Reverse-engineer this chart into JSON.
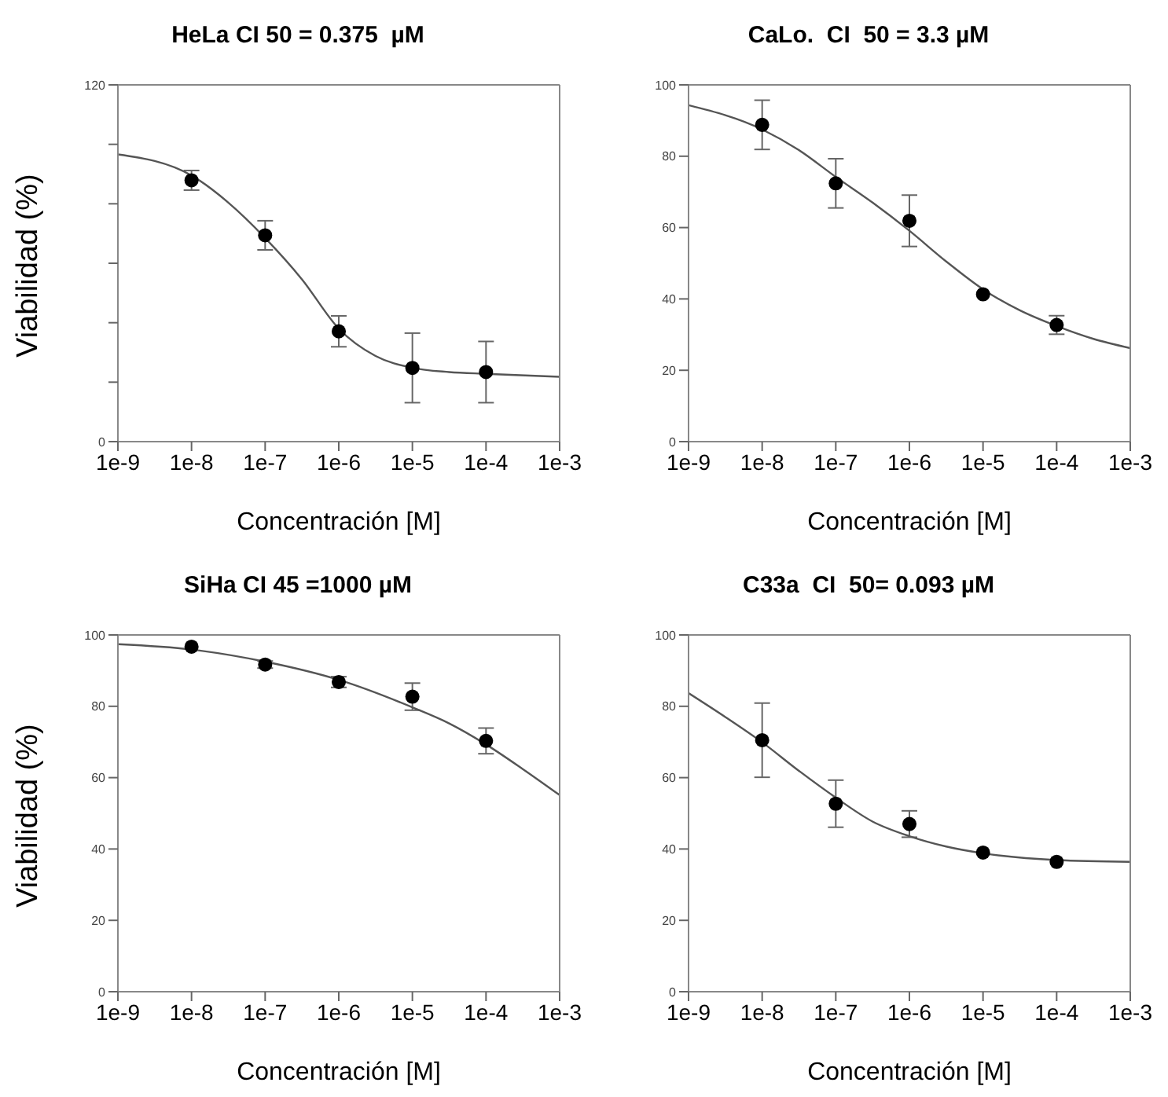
{
  "chart_data": [
    {
      "type": "scatter",
      "title": "HeLa CI 50 = 0.375  µM",
      "xlabel": "Concentración [M]",
      "ylabel": "Viabilidad (%)",
      "log": "x",
      "xlim": [
        1e-09,
        0.001
      ],
      "xticks": [
        {
          "value": 1e-09,
          "label": "1e-9"
        },
        {
          "value": 1e-08,
          "label": "1e-8"
        },
        {
          "value": 1e-07,
          "label": "1e-7"
        },
        {
          "value": 1e-06,
          "label": "1e-6"
        },
        {
          "value": 1e-05,
          "label": "1e-5"
        },
        {
          "value": 0.0001,
          "label": "1e-4"
        },
        {
          "value": 0.001,
          "label": "1e-3"
        }
      ],
      "ylim": [
        0,
        120
      ],
      "yticks": [
        0,
        {
          "value": 20,
          "label": null
        },
        {
          "value": 40,
          "label": null
        },
        {
          "value": 60,
          "label": null
        },
        {
          "value": 80,
          "label": null
        },
        {
          "value": 100,
          "label": null
        },
        120
      ],
      "series": [
        {
          "type": "scatter",
          "marker": "circle",
          "color": "#000000",
          "x": [
            1e-08,
            1e-07,
            1e-06,
            1e-05,
            0.0001
          ],
          "values": [
            87.9,
            69.4,
            37.1,
            24.8,
            23.4
          ],
          "errors": [
            3.3,
            4.9,
            5.2,
            11.7,
            10.3
          ]
        },
        {
          "type": "line",
          "marker": "none",
          "color": "#555555",
          "x": [
            1e-09,
            1e-08,
            3.16e-08,
            1e-07,
            3.16e-07,
            1e-06,
            3.16e-06,
            1e-05,
            3.16e-05,
            0.0001,
            0.001
          ],
          "values": [
            96.6,
            89.5,
            80.4,
            68.5,
            54.6,
            38,
            28.8,
            24.8,
            23.4,
            22.8,
            21.8
          ]
        }
      ]
    },
    {
      "type": "scatter",
      "title": "CaLo.  CI  50 = 3.3 µM",
      "xlabel": "Concentración [M]",
      "log": "x",
      "xlim": [
        1e-09,
        0.001
      ],
      "xticks": [
        {
          "value": 1e-09,
          "label": "1e-9"
        },
        {
          "value": 1e-08,
          "label": "1e-8"
        },
        {
          "value": 1e-07,
          "label": "1e-7"
        },
        {
          "value": 1e-06,
          "label": "1e-6"
        },
        {
          "value": 1e-05,
          "label": "1e-5"
        },
        {
          "value": 0.0001,
          "label": "1e-4"
        },
        {
          "value": 0.001,
          "label": "1e-3"
        }
      ],
      "ylim": [
        0,
        100
      ],
      "yticks": [
        0,
        20,
        40,
        60,
        80,
        100
      ],
      "series": [
        {
          "type": "scatter",
          "marker": "circle",
          "color": "#000000",
          "x": [
            1e-08,
            1e-07,
            1e-06,
            1e-05,
            0.0001
          ],
          "values": [
            88.8,
            72.4,
            61.9,
            41.3,
            32.7
          ],
          "errors": [
            6.9,
            6.9,
            7.2,
            null,
            2.6
          ]
        },
        {
          "type": "line",
          "marker": "none",
          "color": "#555555",
          "x": [
            1e-09,
            1e-08,
            3.16e-08,
            1e-07,
            3.16e-07,
            1e-06,
            3.16e-06,
            1e-05,
            3.16e-05,
            0.0001,
            0.000316,
            0.001
          ],
          "values": [
            94.3,
            87.5,
            81.7,
            74.2,
            67,
            59.1,
            50.5,
            42.7,
            36.8,
            32.4,
            28.8,
            26.2
          ]
        }
      ]
    },
    {
      "type": "scatter",
      "title": "SiHa CI 45 =1000 µM",
      "xlabel": "Concentración [M]",
      "ylabel": "Viabilidad (%)",
      "log": "x",
      "xlim": [
        1e-09,
        0.001
      ],
      "xticks": [
        {
          "value": 1e-09,
          "label": "1e-9"
        },
        {
          "value": 1e-08,
          "label": "1e-8"
        },
        {
          "value": 1e-07,
          "label": "1e-7"
        },
        {
          "value": 1e-06,
          "label": "1e-6"
        },
        {
          "value": 1e-05,
          "label": "1e-5"
        },
        {
          "value": 0.0001,
          "label": "1e-4"
        },
        {
          "value": 0.001,
          "label": "1e-3"
        }
      ],
      "ylim": [
        0,
        100
      ],
      "yticks": [
        0,
        20,
        40,
        60,
        80,
        100
      ],
      "series": [
        {
          "type": "scatter",
          "marker": "circle",
          "color": "#000000",
          "x": [
            1e-08,
            1e-07,
            1e-06,
            1e-05,
            0.0001
          ],
          "values": [
            96.7,
            91.7,
            86.8,
            82.7,
            70.3
          ],
          "errors": [
            null,
            1,
            1.5,
            3.8,
            3.6
          ]
        },
        {
          "type": "line",
          "marker": "none",
          "color": "#555555",
          "x": [
            1e-09,
            1e-08,
            1e-07,
            1e-06,
            1e-05,
            3.16e-05,
            0.0001,
            0.000316,
            0.001
          ],
          "values": [
            97.4,
            95.9,
            92.5,
            87.4,
            79.7,
            75.2,
            69.3,
            62.4,
            55.1
          ]
        }
      ]
    },
    {
      "type": "scatter",
      "title": "C33a  CI  50= 0.093 µM",
      "xlabel": "Concentración [M]",
      "log": "x",
      "xlim": [
        1e-09,
        0.001
      ],
      "xticks": [
        {
          "value": 1e-09,
          "label": "1e-9"
        },
        {
          "value": 1e-08,
          "label": "1e-8"
        },
        {
          "value": 1e-07,
          "label": "1e-7"
        },
        {
          "value": 1e-06,
          "label": "1e-6"
        },
        {
          "value": 1e-05,
          "label": "1e-5"
        },
        {
          "value": 0.0001,
          "label": "1e-4"
        },
        {
          "value": 0.001,
          "label": "1e-3"
        }
      ],
      "ylim": [
        0,
        100
      ],
      "yticks": [
        0,
        20,
        40,
        60,
        80,
        100
      ],
      "series": [
        {
          "type": "scatter",
          "marker": "circle",
          "color": "#000000",
          "x": [
            1e-08,
            1e-07,
            1e-06,
            1e-05,
            0.0001
          ],
          "values": [
            70.5,
            52.7,
            47,
            39,
            36.4
          ],
          "errors": [
            10.4,
            6.6,
            3.7,
            null,
            null
          ]
        },
        {
          "type": "line",
          "marker": "none",
          "color": "#555555",
          "x": [
            1e-09,
            3.16e-09,
            1e-08,
            3.16e-08,
            1e-07,
            3.16e-07,
            1e-06,
            3.16e-06,
            1e-05,
            0.0001,
            0.001
          ],
          "values": [
            83.7,
            77,
            69.9,
            61.9,
            54.4,
            47.7,
            43.6,
            40.7,
            38.8,
            36.9,
            36.4
          ]
        }
      ]
    }
  ]
}
